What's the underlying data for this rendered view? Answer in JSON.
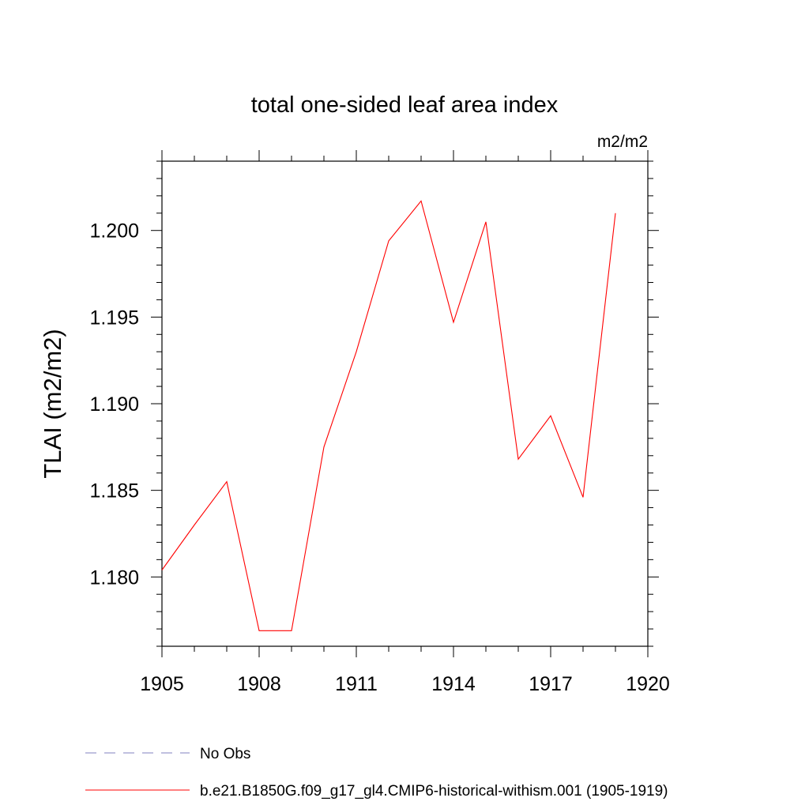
{
  "chart_data": {
    "type": "line",
    "title": "total one-sided leaf area index",
    "units_label": "m2/m2",
    "ylabel": "TLAI  (m2/m2)",
    "xlabel": "",
    "xlim": [
      1905,
      1920
    ],
    "ylim": [
      1.176,
      1.204
    ],
    "x_ticks": [
      1905,
      1908,
      1911,
      1914,
      1917,
      1920
    ],
    "x_tick_labels": [
      "1905",
      "1908",
      "1911",
      "1914",
      "1917",
      "1920"
    ],
    "y_ticks": [
      1.18,
      1.185,
      1.19,
      1.195,
      1.2
    ],
    "y_tick_labels": [
      "1.180",
      "1.185",
      "1.190",
      "1.195",
      "1.200"
    ],
    "grid": false,
    "legend_position": "bottom",
    "series": [
      {
        "name": "b.e21.B1850G.f09_g17_gl4.CMIP6-historical-withism.001 (1905-1919)",
        "color": "#ff0000",
        "dash": "solid",
        "x": [
          1905,
          1906,
          1907,
          1908,
          1909,
          1910,
          1911,
          1912,
          1913,
          1914,
          1915,
          1916,
          1917,
          1918,
          1919
        ],
        "y": [
          1.1804,
          1.183,
          1.1855,
          1.1769,
          1.1769,
          1.1875,
          1.193,
          1.1994,
          1.2017,
          1.1947,
          1.2005,
          1.1868,
          1.1893,
          1.1846,
          1.201
        ]
      }
    ],
    "legend": [
      {
        "label": "No Obs",
        "color": "#8080c0",
        "dash": "dashed"
      },
      {
        "label": "b.e21.B1850G.f09_g17_gl4.CMIP6-historical-withism.001 (1905-1919)",
        "color": "#ff0000",
        "dash": "solid"
      }
    ]
  }
}
